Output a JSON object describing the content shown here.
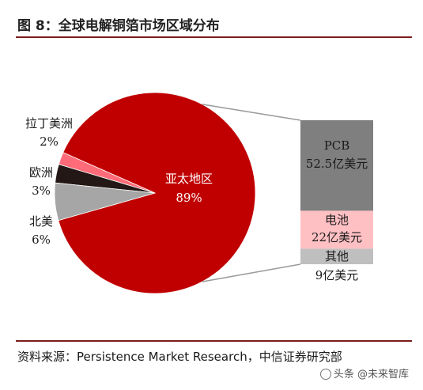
{
  "figure": {
    "title": "图 8：全球电解铜箔市场区域分布",
    "source": "资料来源：Persistence Market Research，中信证券研究部",
    "watermark": "头条 @未来智库"
  },
  "chart_data": {
    "type": "pie",
    "slices": [
      {
        "name": "亚太地区",
        "pct_label": "89%",
        "value": 89,
        "color": "#c00000"
      },
      {
        "name": "拉丁美洲",
        "pct_label": "2%",
        "value": 2,
        "color": "#ff6b78"
      },
      {
        "name": "欧洲",
        "pct_label": "3%",
        "value": 3,
        "color": "#231815"
      },
      {
        "name": "北美",
        "pct_label": "6%",
        "value": 6,
        "color": "#a6a6a6"
      }
    ],
    "breakdown": {
      "of": "亚太地区",
      "type": "stacked-bar",
      "segments": [
        {
          "name": "PCB",
          "value_label": "52.5亿美元",
          "value": 52.5,
          "color": "#7f7f7f"
        },
        {
          "name": "电池",
          "value_label": "22亿美元",
          "value": 22,
          "color": "#ffc0c4"
        },
        {
          "name": "其他",
          "value_label": "9亿美元",
          "value": 9,
          "color": "#bfbfbf"
        }
      ]
    }
  }
}
